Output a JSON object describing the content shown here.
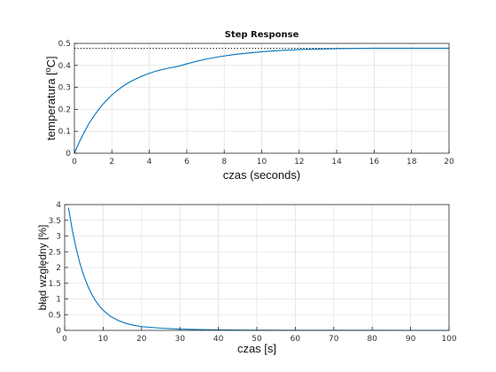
{
  "chart_data": [
    {
      "type": "line",
      "title": "Step Response",
      "xlabel": "czas  (seconds)",
      "ylabel": "temperatura [",
      "ylabel_unit": "o",
      "ylabel_suffix": "C]",
      "xlim": [
        0,
        20
      ],
      "ylim": [
        0,
        0.5
      ],
      "xticks": [
        "0",
        "2",
        "4",
        "6",
        "8",
        "10",
        "12",
        "14",
        "16",
        "18",
        "20"
      ],
      "yticks": [
        "0",
        "0.1",
        "0.2",
        "0.3",
        "0.4",
        "0.5"
      ],
      "grid": true,
      "series": [
        {
          "color": "#0072bd",
          "x": [
            0,
            0.25,
            0.5,
            0.75,
            1,
            1.25,
            1.5,
            1.75,
            2,
            2.25,
            2.5,
            2.75,
            3,
            3.25,
            3.5,
            3.75,
            4,
            4.25,
            4.5,
            4.75,
            5,
            5.5,
            6,
            6.5,
            7,
            7.5,
            8,
            8.5,
            9,
            9.5,
            10,
            11,
            12,
            13,
            14,
            15,
            16,
            17,
            18,
            19,
            20
          ],
          "y": [
            0,
            0.049,
            0.092,
            0.131,
            0.164,
            0.194,
            0.221,
            0.244,
            0.265,
            0.283,
            0.299,
            0.314,
            0.326,
            0.337,
            0.347,
            0.356,
            0.364,
            0.371,
            0.377,
            0.382,
            0.387,
            0.395,
            0.407,
            0.418,
            0.428,
            0.436,
            0.443,
            0.449,
            0.454,
            0.458,
            0.462,
            0.468,
            0.472,
            0.474,
            0.476,
            0.477,
            0.478,
            0.478,
            0.478,
            0.478,
            0.478
          ]
        }
      ],
      "steady_state": {
        "y": 0.478,
        "style": "dotted",
        "color": "#000000"
      }
    },
    {
      "type": "line",
      "title": "",
      "xlabel": "czas [s]",
      "ylabel": "błąd względny [%]",
      "xlim": [
        0,
        100
      ],
      "ylim": [
        0,
        4
      ],
      "xticks": [
        "0",
        "10",
        "20",
        "30",
        "40",
        "50",
        "60",
        "70",
        "80",
        "90",
        "100"
      ],
      "yticks": [
        "0",
        "0.5",
        "1",
        "1.5",
        "2",
        "2.5",
        "3",
        "3.5",
        "4"
      ],
      "grid": true,
      "series": [
        {
          "color": "#0072bd",
          "x": [
            1,
            2,
            3,
            4,
            5,
            6,
            7,
            8,
            9,
            10,
            12,
            14,
            16,
            18,
            20,
            25,
            30,
            35,
            40,
            45,
            50,
            60,
            70,
            80,
            90,
            100
          ],
          "y": [
            3.9,
            3.18,
            2.6,
            2.12,
            1.73,
            1.42,
            1.16,
            0.95,
            0.78,
            0.64,
            0.44,
            0.31,
            0.22,
            0.16,
            0.12,
            0.07,
            0.04,
            0.025,
            0.015,
            0.01,
            0.006,
            0.003,
            0.0015,
            0.0008,
            0.0004,
            0.0002
          ]
        }
      ]
    }
  ]
}
